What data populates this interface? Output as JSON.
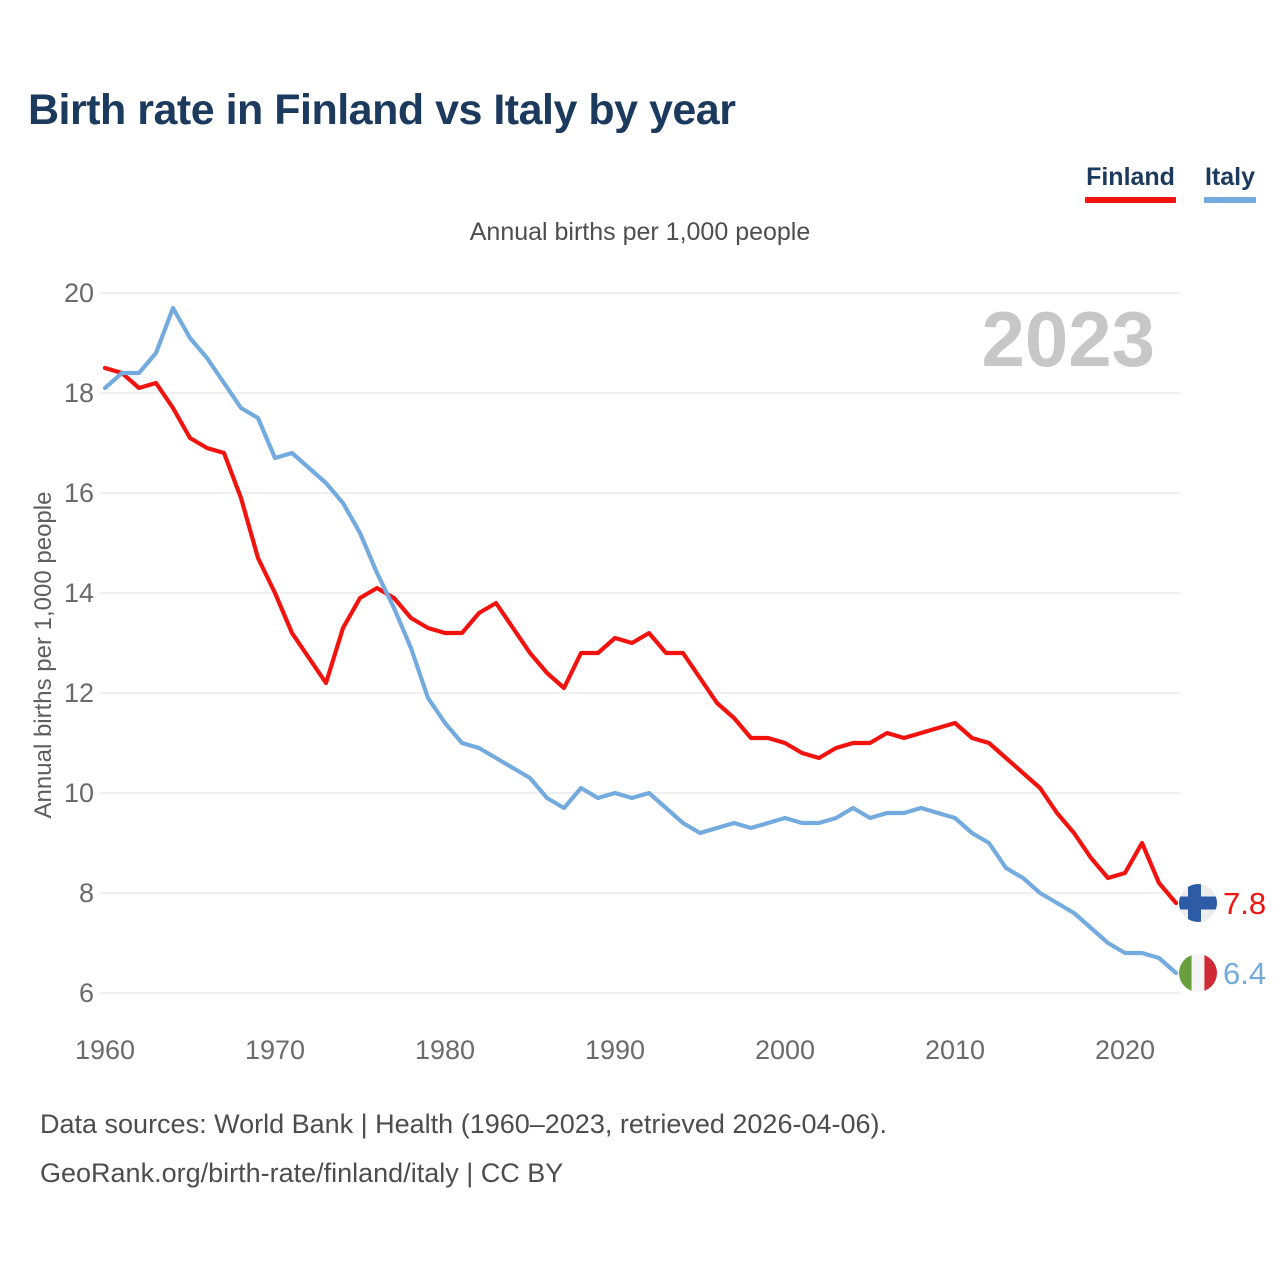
{
  "chart_data": {
    "type": "line",
    "title": "Birth rate in Finland vs Italy by year",
    "subtitle": "Annual births per 1,000 people",
    "ylabel": "Annual births per 1,000 people",
    "xlabel": "",
    "watermark": "2023",
    "grid": "horizontal",
    "legend_position": "top-right",
    "xlim": [
      1960,
      2023
    ],
    "ylim": [
      6,
      20
    ],
    "xticks": [
      1960,
      1970,
      1980,
      1990,
      2000,
      2010,
      2020
    ],
    "yticks": [
      20,
      18,
      16,
      14,
      12,
      10,
      8,
      6
    ],
    "x": [
      1960,
      1961,
      1962,
      1963,
      1964,
      1965,
      1966,
      1967,
      1968,
      1969,
      1970,
      1971,
      1972,
      1973,
      1974,
      1975,
      1976,
      1977,
      1978,
      1979,
      1980,
      1981,
      1982,
      1983,
      1984,
      1985,
      1986,
      1987,
      1988,
      1989,
      1990,
      1991,
      1992,
      1993,
      1994,
      1995,
      1996,
      1997,
      1998,
      1999,
      2000,
      2001,
      2002,
      2003,
      2004,
      2005,
      2006,
      2007,
      2008,
      2009,
      2010,
      2011,
      2012,
      2013,
      2014,
      2015,
      2016,
      2017,
      2018,
      2019,
      2020,
      2021,
      2022,
      2023
    ],
    "series": [
      {
        "name": "Finland",
        "color": "#F2130F",
        "end_label": "7.8",
        "flag_icon": "finland-flag-icon",
        "values": [
          18.5,
          18.4,
          18.1,
          18.2,
          17.7,
          17.1,
          16.9,
          16.8,
          15.9,
          14.7,
          14.0,
          13.2,
          12.7,
          12.2,
          13.3,
          13.9,
          14.1,
          13.9,
          13.5,
          13.3,
          13.2,
          13.2,
          13.6,
          13.8,
          13.3,
          12.8,
          12.4,
          12.1,
          12.8,
          12.8,
          13.1,
          13.0,
          13.2,
          12.8,
          12.8,
          12.3,
          11.8,
          11.5,
          11.1,
          11.1,
          11.0,
          10.8,
          10.7,
          10.9,
          11.0,
          11.0,
          11.2,
          11.1,
          11.2,
          11.3,
          11.4,
          11.1,
          11.0,
          10.7,
          10.4,
          10.1,
          9.6,
          9.2,
          8.7,
          8.3,
          8.4,
          9.0,
          8.2,
          7.8
        ]
      },
      {
        "name": "Italy",
        "color": "#74ABDE",
        "end_label": "6.4",
        "flag_icon": "italy-flag-icon",
        "values": [
          18.1,
          18.4,
          18.4,
          18.8,
          19.7,
          19.1,
          18.7,
          18.2,
          17.7,
          17.5,
          16.7,
          16.8,
          16.5,
          16.2,
          15.8,
          15.2,
          14.4,
          13.7,
          12.9,
          11.9,
          11.4,
          11.0,
          10.9,
          10.7,
          10.5,
          10.3,
          9.9,
          9.7,
          10.1,
          9.9,
          10.0,
          9.9,
          10.0,
          9.7,
          9.4,
          9.2,
          9.3,
          9.4,
          9.3,
          9.4,
          9.5,
          9.4,
          9.4,
          9.5,
          9.7,
          9.5,
          9.6,
          9.6,
          9.7,
          9.6,
          9.5,
          9.2,
          9.0,
          8.5,
          8.3,
          8.0,
          7.8,
          7.6,
          7.3,
          7.0,
          6.8,
          6.8,
          6.7,
          6.4
        ]
      }
    ],
    "flag_colors": {
      "finland_cross_blue": "#2D5BA5",
      "finland_circle_bg": "#EDEDED",
      "italy_green": "#69A03F",
      "italy_white": "#F5F5F5",
      "italy_red": "#CE2B37"
    }
  },
  "footer": {
    "line1": "Data sources: World Bank | Health (1960–2023, retrieved 2026-04-06).",
    "line2": "GeoRank.org/birth-rate/finland/italy | CC BY"
  }
}
